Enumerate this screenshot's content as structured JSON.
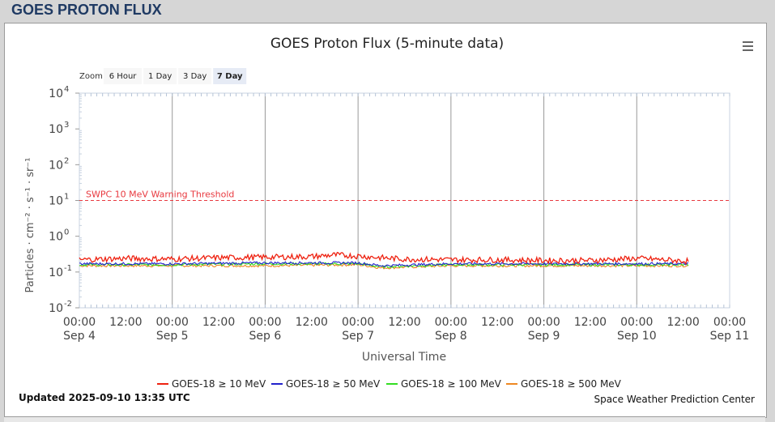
{
  "page": {
    "header_title": "GOES PROTON FLUX"
  },
  "chart_data": {
    "type": "line",
    "title": "GOES Proton Flux (5-minute data)",
    "xlabel": "Universal Time",
    "ylabel": "Particles · cm⁻² · s⁻¹ · sr⁻¹",
    "y_scale": "log",
    "ylim": [
      0.01,
      10000
    ],
    "xlim": [
      "2025-09-04 00:00",
      "2025-09-11 00:00"
    ],
    "y_ticks": [
      {
        "value": 0.01,
        "base": "10",
        "exp": "-2"
      },
      {
        "value": 0.1,
        "base": "10",
        "exp": "-1"
      },
      {
        "value": 1,
        "base": "10",
        "exp": "0"
      },
      {
        "value": 10,
        "base": "10",
        "exp": "1"
      },
      {
        "value": 100,
        "base": "10",
        "exp": "2"
      },
      {
        "value": 1000,
        "base": "10",
        "exp": "3"
      },
      {
        "value": 10000,
        "base": "10",
        "exp": "4"
      }
    ],
    "x_ticks": [
      {
        "time": "00:00",
        "date": "Sep 4"
      },
      {
        "time": "12:00",
        "date": ""
      },
      {
        "time": "00:00",
        "date": "Sep 5"
      },
      {
        "time": "12:00",
        "date": ""
      },
      {
        "time": "00:00",
        "date": "Sep 6"
      },
      {
        "time": "12:00",
        "date": ""
      },
      {
        "time": "00:00",
        "date": "Sep 7"
      },
      {
        "time": "12:00",
        "date": ""
      },
      {
        "time": "00:00",
        "date": "Sep 8"
      },
      {
        "time": "12:00",
        "date": ""
      },
      {
        "time": "00:00",
        "date": "Sep 9"
      },
      {
        "time": "12:00",
        "date": ""
      },
      {
        "time": "00:00",
        "date": "Sep 10"
      },
      {
        "time": "12:00",
        "date": ""
      },
      {
        "time": "00:00",
        "date": "Sep 11"
      }
    ],
    "threshold": {
      "label": "SWPC 10 MeV Warning Threshold",
      "value": 10,
      "color": "#e8393f"
    },
    "grid": true,
    "legend_position": "bottom",
    "series": [
      {
        "name": "GOES-18 ≥ 10 MeV",
        "color": "#ee2211",
        "x": [
          "2025-09-04 00:00",
          "2025-09-04 12:00",
          "2025-09-05 00:00",
          "2025-09-05 12:00",
          "2025-09-06 00:00",
          "2025-09-06 12:00",
          "2025-09-06 18:00",
          "2025-09-07 00:00",
          "2025-09-07 06:00",
          "2025-09-07 12:00",
          "2025-09-08 00:00",
          "2025-09-08 12:00",
          "2025-09-09 00:00",
          "2025-09-09 12:00",
          "2025-09-10 00:00",
          "2025-09-10 13:35"
        ],
        "y": [
          0.22,
          0.24,
          0.23,
          0.25,
          0.26,
          0.27,
          0.3,
          0.28,
          0.25,
          0.23,
          0.22,
          0.22,
          0.21,
          0.21,
          0.24,
          0.2
        ]
      },
      {
        "name": "GOES-18 ≥ 50 MeV",
        "color": "#2222cc",
        "x": [
          "2025-09-04 00:00",
          "2025-09-05 00:00",
          "2025-09-06 00:00",
          "2025-09-07 00:00",
          "2025-09-07 06:00",
          "2025-09-08 00:00",
          "2025-09-09 00:00",
          "2025-09-10 00:00",
          "2025-09-10 13:35"
        ],
        "y": [
          0.17,
          0.17,
          0.18,
          0.18,
          0.15,
          0.17,
          0.17,
          0.17,
          0.17
        ]
      },
      {
        "name": "GOES-18 ≥ 100 MeV",
        "color": "#33dd22",
        "x": [
          "2025-09-04 00:00",
          "2025-09-05 00:00",
          "2025-09-06 00:00",
          "2025-09-07 00:00",
          "2025-09-07 06:00",
          "2025-09-08 00:00",
          "2025-09-09 00:00",
          "2025-09-10 00:00",
          "2025-09-10 13:35"
        ],
        "y": [
          0.16,
          0.16,
          0.17,
          0.17,
          0.14,
          0.16,
          0.16,
          0.16,
          0.16
        ]
      },
      {
        "name": "GOES-18 ≥ 500 MeV",
        "color": "#ee8822",
        "x": [
          "2025-09-04 00:00",
          "2025-09-05 00:00",
          "2025-09-06 00:00",
          "2025-09-07 00:00",
          "2025-09-07 06:00",
          "2025-09-08 00:00",
          "2025-09-09 00:00",
          "2025-09-10 00:00",
          "2025-09-10 13:35"
        ],
        "y": [
          0.15,
          0.15,
          0.15,
          0.16,
          0.13,
          0.15,
          0.15,
          0.15,
          0.15
        ]
      }
    ]
  },
  "zoom": {
    "label": "Zoom",
    "buttons": [
      {
        "label": "6 Hour",
        "selected": false
      },
      {
        "label": "1 Day",
        "selected": false
      },
      {
        "label": "3 Day",
        "selected": false
      },
      {
        "label": "7 Day",
        "selected": true
      }
    ]
  },
  "menu_icon": "hamburger-menu-icon",
  "footer": {
    "updated": "Updated 2025-09-10 13:35 UTC",
    "credit": "Space Weather Prediction Center"
  }
}
